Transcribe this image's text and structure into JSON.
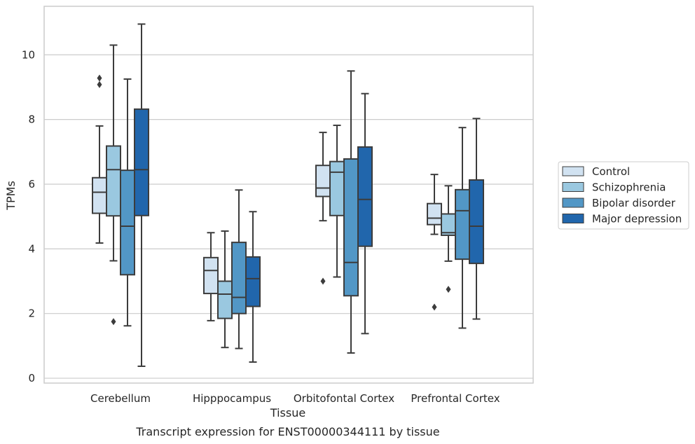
{
  "chart_data": {
    "type": "box",
    "title": "",
    "caption": "Transcript expression for ENST00000344111 by tissue",
    "xlabel": "Tissue",
    "ylabel": "TPMs",
    "ylim": [
      -0.15,
      11.5
    ],
    "yticks": [
      0,
      2,
      4,
      6,
      8,
      10
    ],
    "grid": "horizontal",
    "legend_position": "right",
    "categories": [
      "Cerebellum",
      "Hipppocampus",
      "Orbitofontal Cortex",
      "Prefrontal Cortex"
    ],
    "series": [
      {
        "name": "Control",
        "color": "#d1e2f1",
        "boxes": [
          {
            "whislo": 4.18,
            "q1": 5.1,
            "med": 5.75,
            "q3": 6.2,
            "whishi": 7.8,
            "fliers": [
              9.08,
              9.28
            ]
          },
          {
            "whislo": 1.78,
            "q1": 2.62,
            "med": 3.33,
            "q3": 3.73,
            "whishi": 4.5,
            "fliers": []
          },
          {
            "whislo": 4.87,
            "q1": 5.62,
            "med": 5.88,
            "q3": 6.58,
            "whishi": 7.6,
            "fliers": [
              3.0
            ]
          },
          {
            "whislo": 4.45,
            "q1": 4.75,
            "med": 4.95,
            "q3": 5.4,
            "whishi": 6.3,
            "fliers": [
              2.2
            ]
          }
        ]
      },
      {
        "name": "Schizophrenia",
        "color": "#9ac8e0",
        "boxes": [
          {
            "whislo": 3.63,
            "q1": 5.02,
            "med": 6.45,
            "q3": 7.18,
            "whishi": 10.3,
            "fliers": [
              1.75
            ]
          },
          {
            "whislo": 0.95,
            "q1": 1.85,
            "med": 2.6,
            "q3": 3.0,
            "whishi": 4.55,
            "fliers": []
          },
          {
            "whislo": 3.13,
            "q1": 5.03,
            "med": 6.37,
            "q3": 6.7,
            "whishi": 7.82,
            "fliers": []
          },
          {
            "whislo": 3.62,
            "q1": 4.42,
            "med": 4.5,
            "q3": 5.08,
            "whishi": 5.95,
            "fliers": [
              2.75
            ]
          }
        ]
      },
      {
        "name": "Bipolar disorder",
        "color": "#5297c6",
        "boxes": [
          {
            "whislo": 1.62,
            "q1": 3.2,
            "med": 4.7,
            "q3": 6.43,
            "whishi": 9.25,
            "fliers": []
          },
          {
            "whislo": 0.92,
            "q1": 2.0,
            "med": 2.5,
            "q3": 4.2,
            "whishi": 5.82,
            "fliers": []
          },
          {
            "whislo": 0.78,
            "q1": 2.55,
            "med": 3.58,
            "q3": 6.78,
            "whishi": 9.5,
            "fliers": []
          },
          {
            "whislo": 1.55,
            "q1": 3.68,
            "med": 5.18,
            "q3": 5.83,
            "whishi": 7.75,
            "fliers": []
          }
        ]
      },
      {
        "name": "Major depression",
        "color": "#2166ac",
        "boxes": [
          {
            "whislo": 0.37,
            "q1": 5.03,
            "med": 6.45,
            "q3": 8.32,
            "whishi": 10.95,
            "fliers": []
          },
          {
            "whislo": 0.5,
            "q1": 2.22,
            "med": 3.08,
            "q3": 3.75,
            "whishi": 5.15,
            "fliers": []
          },
          {
            "whislo": 1.38,
            "q1": 4.08,
            "med": 5.53,
            "q3": 7.15,
            "whishi": 8.8,
            "fliers": []
          },
          {
            "whislo": 1.83,
            "q1": 3.55,
            "med": 4.7,
            "q3": 6.13,
            "whishi": 8.03,
            "fliers": []
          }
        ]
      }
    ]
  },
  "style": {
    "grid_color": "#cccccc",
    "frame_color": "#cccccc",
    "line_color": "#3c3c3c"
  }
}
